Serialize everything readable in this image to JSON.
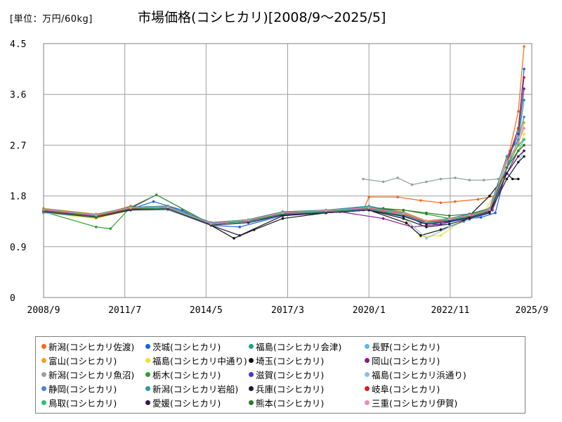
{
  "header": {
    "unit": "[単位：万円/60kg]",
    "title": "市場価格(コシヒカリ)[2008/9～2025/5]"
  },
  "chart_data": {
    "type": "line",
    "title": "市場価格(コシヒカリ)[2008/9～2025/5]",
    "ylabel": "[単位：万円/60kg]",
    "xlabel": "",
    "ylim": [
      0,
      4.5
    ],
    "yticks": [
      "0",
      "0.9",
      "1.8",
      "2.7",
      "3.6",
      "4.5"
    ],
    "xlim": [
      2008.67,
      2025.67
    ],
    "xticks": [
      {
        "label": "2008/9",
        "x": 2008.67
      },
      {
        "label": "2011/7",
        "x": 2011.5
      },
      {
        "label": "2014/5",
        "x": 2014.33
      },
      {
        "label": "2017/3",
        "x": 2017.17
      },
      {
        "label": "2020/1",
        "x": 2020.0
      },
      {
        "label": "2022/11",
        "x": 2022.83
      },
      {
        "label": "2025/9",
        "x": 2025.67
      }
    ],
    "grid": true,
    "legend_position": "bottom",
    "series": [
      {
        "name": "新潟(コシヒカリ佐渡)",
        "color": "#f26b1d",
        "x": [
          2008.67,
          2010.5,
          2011.7,
          2013.0,
          2014.5,
          2015.5,
          2017.0,
          2018.5,
          2019.8,
          2020.0,
          2021.0,
          2021.8,
          2022.5,
          2023.0,
          2023.8,
          2024.4,
          2024.9,
          2025.2,
          2025.4
        ],
        "values": [
          1.56,
          1.45,
          1.62,
          1.55,
          1.32,
          1.35,
          1.52,
          1.5,
          1.55,
          1.78,
          1.78,
          1.72,
          1.68,
          1.7,
          1.74,
          1.8,
          2.6,
          3.3,
          4.45
        ]
      },
      {
        "name": "茨城(コシヒカリ)",
        "color": "#1a5fe0",
        "x": [
          2008.67,
          2010.5,
          2011.6,
          2012.5,
          2013.5,
          2014.5,
          2015.5,
          2017.0,
          2018.5,
          2019.5,
          2020.5,
          2021.2,
          2021.8,
          2022.5,
          2023.2,
          2023.9,
          2024.4,
          2024.9,
          2025.2,
          2025.4
        ],
        "values": [
          1.52,
          1.42,
          1.55,
          1.7,
          1.55,
          1.28,
          1.25,
          1.45,
          1.5,
          1.55,
          1.58,
          1.5,
          1.32,
          1.3,
          1.38,
          1.42,
          1.5,
          2.5,
          3.0,
          4.05
        ]
      },
      {
        "name": "福島(コシヒカリ会津)",
        "color": "#1ea58a",
        "x": [
          2008.67,
          2010.5,
          2011.7,
          2013.0,
          2014.5,
          2015.8,
          2017.0,
          2018.5,
          2020.0,
          2021.2,
          2022.0,
          2022.8,
          2023.5,
          2024.2,
          2024.8,
          2025.2,
          2025.4
        ],
        "values": [
          1.53,
          1.44,
          1.58,
          1.6,
          1.32,
          1.35,
          1.48,
          1.52,
          1.58,
          1.5,
          1.35,
          1.38,
          1.45,
          1.52,
          2.3,
          2.8,
          3.5
        ]
      },
      {
        "name": "長野(コシヒカリ)",
        "color": "#5ab8ea",
        "x": [
          2008.67,
          2010.5,
          2011.7,
          2013.0,
          2014.5,
          2015.8,
          2017.0,
          2018.5,
          2020.0,
          2021.2,
          2022.0,
          2022.8,
          2023.5,
          2024.2,
          2024.8,
          2025.2,
          2025.4
        ],
        "values": [
          1.55,
          1.46,
          1.6,
          1.58,
          1.3,
          1.36,
          1.5,
          1.53,
          1.6,
          1.48,
          1.3,
          1.36,
          1.44,
          1.55,
          2.2,
          2.6,
          2.8
        ]
      },
      {
        "name": "富山(コシヒカリ)",
        "color": "#f0a020",
        "x": [
          2008.67,
          2010.5,
          2011.7,
          2013.0,
          2014.5,
          2015.8,
          2017.0,
          2018.5,
          2020.0,
          2021.2,
          2022.0,
          2022.8,
          2023.5,
          2024.2,
          2024.8,
          2025.2,
          2025.4
        ],
        "values": [
          1.58,
          1.48,
          1.6,
          1.62,
          1.33,
          1.38,
          1.52,
          1.55,
          1.6,
          1.52,
          1.36,
          1.4,
          1.48,
          1.58,
          2.4,
          2.7,
          3.1
        ]
      },
      {
        "name": "福島(コシヒカリ中通り)",
        "color": "#f2e02a",
        "x": [
          2008.67,
          2010.5,
          2011.7,
          2013.0,
          2014.5,
          2015.8,
          2017.0,
          2018.5,
          2020.0,
          2021.2,
          2021.8,
          2022.5,
          2023.2,
          2024.0,
          2024.8,
          2025.2,
          2025.4
        ],
        "values": [
          1.5,
          1.4,
          1.55,
          1.55,
          1.28,
          1.32,
          1.45,
          1.5,
          1.55,
          1.4,
          1.08,
          1.1,
          1.35,
          1.5,
          2.2,
          2.6,
          2.9
        ]
      },
      {
        "name": "埼玉(コシヒカリ)",
        "color": "#111111",
        "x": [
          2008.67,
          2010.5,
          2011.7,
          2013.0,
          2014.5,
          2015.3,
          2016.0,
          2017.0,
          2018.5,
          2020.0,
          2021.3,
          2021.8,
          2022.5,
          2023.3,
          2024.2,
          2024.8,
          2025.0,
          2025.2
        ],
        "values": [
          1.53,
          1.43,
          1.56,
          1.6,
          1.28,
          1.05,
          1.2,
          1.4,
          1.5,
          1.55,
          1.32,
          1.1,
          1.2,
          1.35,
          1.8,
          2.2,
          2.1,
          2.1
        ]
      },
      {
        "name": "岡山(コシヒカリ)",
        "color": "#8a1a8a",
        "x": [
          2008.67,
          2010.5,
          2011.7,
          2012.6,
          2014.5,
          2016.0,
          2017.5,
          2019.0,
          2020.5,
          2021.5,
          2022.5,
          2023.5,
          2024.3,
          2024.8,
          2025.2,
          2025.4
        ],
        "values": [
          1.54,
          1.44,
          1.58,
          1.82,
          1.3,
          1.38,
          1.48,
          1.52,
          1.4,
          1.25,
          1.3,
          1.45,
          1.55,
          2.2,
          2.6,
          2.7
        ]
      },
      {
        "name": "新潟(コシヒカリ魚沼)",
        "color": "#9aa0a6",
        "x": [
          2019.8,
          2020.5,
          2021.0,
          2021.5,
          2022.0,
          2022.5,
          2023.0,
          2023.5,
          2024.0,
          2024.5
        ],
        "values": [
          2.1,
          2.05,
          2.12,
          2.0,
          2.05,
          2.1,
          2.12,
          2.08,
          2.08,
          2.1
        ]
      },
      {
        "name": "栃木(コシヒカリ)",
        "color": "#2aa02a",
        "x": [
          2008.67,
          2010.5,
          2011.0,
          2011.7,
          2012.6,
          2014.5,
          2015.8,
          2017.0,
          2018.5,
          2020.0,
          2021.2,
          2022.0,
          2022.8,
          2023.5,
          2024.2,
          2024.8,
          2025.2,
          2025.4
        ],
        "values": [
          1.52,
          1.25,
          1.22,
          1.6,
          1.82,
          1.3,
          1.36,
          1.5,
          1.55,
          1.6,
          1.55,
          1.48,
          1.4,
          1.48,
          1.55,
          2.3,
          2.6,
          2.7
        ]
      },
      {
        "name": "滋賀(コシヒカリ)",
        "color": "#3a3ad0",
        "x": [
          2008.67,
          2010.5,
          2011.7,
          2013.0,
          2014.5,
          2015.8,
          2017.0,
          2018.5,
          2020.0,
          2021.2,
          2022.0,
          2022.8,
          2023.5,
          2024.2,
          2024.8,
          2025.2,
          2025.4
        ],
        "values": [
          1.53,
          1.43,
          1.57,
          1.6,
          1.3,
          1.35,
          1.47,
          1.52,
          1.57,
          1.45,
          1.3,
          1.36,
          1.42,
          1.52,
          2.4,
          2.9,
          3.7
        ]
      },
      {
        "name": "福島(コシヒカリ浜通り)",
        "color": "#8cbfe8",
        "x": [
          2008.67,
          2010.5,
          2011.7,
          2013.0,
          2014.5,
          2015.8,
          2017.0,
          2018.5,
          2020.0,
          2021.2,
          2022.0,
          2022.8,
          2023.5,
          2024.2,
          2024.8,
          2025.2,
          2025.4
        ],
        "values": [
          1.5,
          1.42,
          1.55,
          1.55,
          1.28,
          1.32,
          1.45,
          1.5,
          1.55,
          1.42,
          1.05,
          1.25,
          1.38,
          1.5,
          2.1,
          2.4,
          2.6
        ]
      },
      {
        "name": "静岡(コシヒカリ)",
        "color": "#4d7ee0",
        "x": [
          2008.67,
          2010.5,
          2011.7,
          2013.0,
          2014.5,
          2015.8,
          2017.0,
          2018.5,
          2020.0,
          2021.2,
          2022.0,
          2022.8,
          2023.5,
          2024.2,
          2024.8,
          2025.2,
          2025.4
        ],
        "values": [
          1.55,
          1.45,
          1.6,
          1.62,
          1.32,
          1.36,
          1.5,
          1.54,
          1.6,
          1.5,
          1.32,
          1.38,
          1.46,
          1.56,
          2.3,
          2.7,
          2.8
        ]
      },
      {
        "name": "新潟(コシヒカリ岩船)",
        "color": "#2a9a9a",
        "x": [
          2008.67,
          2010.5,
          2011.7,
          2013.0,
          2014.5,
          2015.8,
          2017.0,
          2018.5,
          2020.0,
          2021.2,
          2022.0,
          2022.8,
          2023.5,
          2024.2,
          2024.8,
          2025.2,
          2025.4
        ],
        "values": [
          1.57,
          1.47,
          1.6,
          1.62,
          1.33,
          1.38,
          1.52,
          1.55,
          1.62,
          1.5,
          1.35,
          1.4,
          1.48,
          1.58,
          2.5,
          2.8,
          3.2
        ]
      },
      {
        "name": "兵庫(コシヒカリ)",
        "color": "#1a1a3a",
        "x": [
          2008.67,
          2010.5,
          2011.7,
          2013.0,
          2014.5,
          2015.5,
          2017.0,
          2018.5,
          2020.0,
          2021.2,
          2022.0,
          2022.8,
          2023.5,
          2024.2,
          2024.8,
          2025.2,
          2025.4
        ],
        "values": [
          1.53,
          1.43,
          1.56,
          1.58,
          1.28,
          1.1,
          1.45,
          1.5,
          1.55,
          1.4,
          1.25,
          1.3,
          1.4,
          1.5,
          2.1,
          2.4,
          2.5
        ]
      },
      {
        "name": "岐阜(コシヒカリ)",
        "color": "#d42020",
        "x": [
          2008.67,
          2010.5,
          2011.7,
          2013.0,
          2014.5,
          2015.8,
          2017.0,
          2018.5,
          2020.0,
          2021.2,
          2022.0,
          2022.8,
          2023.5,
          2024.2,
          2024.8,
          2025.2,
          2025.4
        ],
        "values": [
          1.54,
          1.44,
          1.58,
          1.6,
          1.3,
          1.36,
          1.49,
          1.53,
          1.58,
          1.48,
          1.34,
          1.38,
          1.45,
          1.55,
          2.4,
          3.0,
          3.9
        ]
      },
      {
        "name": "鳥取(コシヒカリ)",
        "color": "#30c070",
        "x": [
          2008.67,
          2010.5,
          2011.7,
          2013.0,
          2014.5,
          2015.8,
          2017.0,
          2018.5,
          2020.0,
          2021.2,
          2022.0,
          2022.8,
          2023.5,
          2024.2,
          2024.8,
          2025.2,
          2025.4
        ],
        "values": [
          1.53,
          1.43,
          1.57,
          1.58,
          1.3,
          1.35,
          1.48,
          1.52,
          1.57,
          1.46,
          1.32,
          1.37,
          1.44,
          1.54,
          2.3,
          2.7,
          2.8
        ]
      },
      {
        "name": "愛媛(コシヒカリ)",
        "color": "#3a1a4a",
        "x": [
          2008.67,
          2010.5,
          2011.7,
          2013.0,
          2014.5,
          2015.8,
          2017.0,
          2018.5,
          2020.0,
          2021.2,
          2022.0,
          2022.8,
          2023.5,
          2024.2,
          2024.8,
          2025.2,
          2025.4
        ],
        "values": [
          1.52,
          1.42,
          1.55,
          1.57,
          1.28,
          1.33,
          1.46,
          1.5,
          1.55,
          1.44,
          1.3,
          1.35,
          1.42,
          1.52,
          2.2,
          2.5,
          2.6
        ]
      },
      {
        "name": "熊本(コシヒカリ)",
        "color": "#2a7a2a",
        "x": [
          2008.67,
          2010.5,
          2011.7,
          2013.0,
          2014.5,
          2015.8,
          2017.0,
          2018.5,
          2020.0,
          2021.2,
          2022.0,
          2022.8,
          2023.5,
          2024.2,
          2024.8,
          2025.2,
          2025.4
        ],
        "values": [
          1.53,
          1.43,
          1.57,
          1.6,
          1.3,
          1.36,
          1.49,
          1.53,
          1.58,
          1.55,
          1.5,
          1.45,
          1.48,
          1.56,
          2.3,
          2.6,
          2.7
        ]
      },
      {
        "name": "三重(コシヒカリ伊賀)",
        "color": "#f08ab8",
        "x": [
          2008.67,
          2010.5,
          2011.7,
          2013.0,
          2014.5,
          2015.8,
          2017.0,
          2018.5,
          2020.0,
          2021.2,
          2022.0,
          2022.8,
          2023.5,
          2024.2,
          2024.8,
          2025.2,
          2025.4
        ],
        "values": [
          1.56,
          1.46,
          1.59,
          1.6,
          1.31,
          1.37,
          1.5,
          1.54,
          1.59,
          1.49,
          1.35,
          1.39,
          1.46,
          1.56,
          2.4,
          2.75,
          3.0
        ]
      }
    ]
  }
}
